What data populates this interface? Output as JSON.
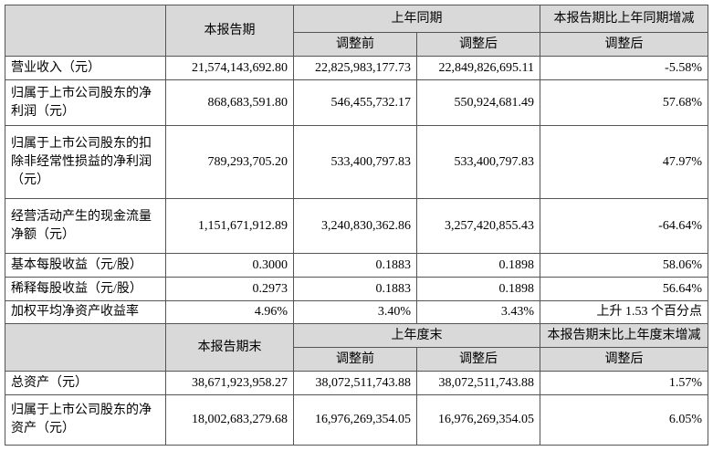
{
  "sections": [
    {
      "header": {
        "period": "本报告期",
        "group": "上年同期",
        "change": "本报告期比上年同期增减",
        "sub": [
          "调整前",
          "调整后",
          "调整后"
        ]
      },
      "rows": [
        [
          "营业收入（元）",
          "21,574,143,692.80",
          "22,825,983,177.73",
          "22,849,826,695.11",
          "-5.58%"
        ],
        [
          "归属于上市公司股东的净利润（元）",
          "868,683,591.80",
          "546,455,732.17",
          "550,924,681.49",
          "57.68%"
        ],
        [
          "归属于上市公司股东的扣除非经常性损益的净利润（元）",
          "789,293,705.20",
          "533,400,797.83",
          "533,400,797.83",
          "47.97%"
        ],
        [
          "经营活动产生的现金流量净额（元）",
          "1,151,671,912.89",
          "3,240,830,362.86",
          "3,257,420,855.43",
          "-64.64%"
        ],
        [
          "基本每股收益（元/股）",
          "0.3000",
          "0.1883",
          "0.1898",
          "58.06%"
        ],
        [
          "稀释每股收益（元/股）",
          "0.2973",
          "0.1883",
          "0.1898",
          "56.64%"
        ],
        [
          "加权平均净资产收益率",
          "4.96%",
          "3.40%",
          "3.43%",
          "上升 1.53 个百分点"
        ]
      ]
    },
    {
      "header": {
        "period": "本报告期末",
        "group": "上年度末",
        "change": "本报告期末比上年度末增减",
        "sub": [
          "调整前",
          "调整后",
          "调整后"
        ]
      },
      "rows": [
        [
          "总资产（元）",
          "38,671,923,958.27",
          "38,072,511,743.88",
          "38,072,511,743.88",
          "1.57%"
        ],
        [
          "归属于上市公司股东的净资产（元）",
          "18,002,683,279.68",
          "16,976,269,354.05",
          "16,976,269,354.05",
          "6.05%"
        ]
      ]
    }
  ]
}
